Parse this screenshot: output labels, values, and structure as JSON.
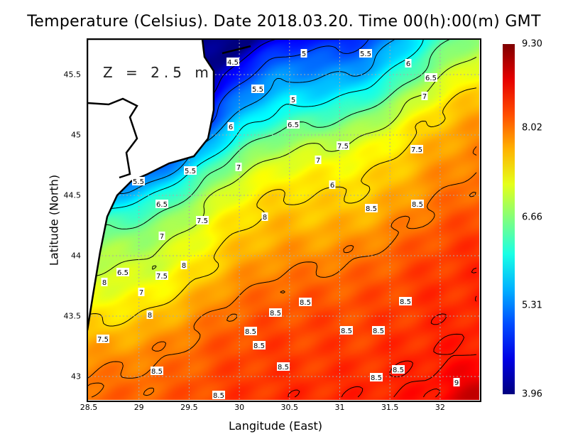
{
  "title": "Temperature (Celsius). Date 2018.03.20. Time 00(h):00(m)  GMT",
  "depth_label": "Z = 2.5 m",
  "x_axis": {
    "label": "Langitude (East)",
    "ticks": [
      "28.5",
      "29",
      "29.5",
      "30",
      "30.5",
      "31",
      "31.5",
      "32"
    ],
    "range": [
      28.5,
      32.4
    ]
  },
  "y_axis": {
    "label": "Latitude (North)",
    "ticks": [
      "45.5",
      "45",
      "44.5",
      "44",
      "43.5",
      "43"
    ],
    "range": [
      42.8,
      45.8
    ]
  },
  "colorbar": {
    "ticks": [
      "9.30",
      "8.02",
      "6.66",
      "5.31",
      "3.96"
    ],
    "min": 3.96,
    "max": 9.3,
    "colormap": "jet"
  },
  "contour_labels": [
    "4.5",
    "5",
    "5.5",
    "6",
    "6.5",
    "7",
    "5.5",
    "5",
    "6.5",
    "7",
    "7.5",
    "7.5",
    "6",
    "5.5",
    "7",
    "8",
    "5.5",
    "6.5",
    "7.5",
    "8",
    "8.5",
    "8.5",
    "6",
    "7",
    "8.5",
    "8",
    "6.5",
    "7",
    "7.5",
    "8",
    "8.5",
    "8.5",
    "8.5",
    "8.5",
    "8.5",
    "8.5",
    "8.5",
    "8.5",
    "8.5",
    "8.5",
    "8.5",
    "9",
    "7.5"
  ],
  "chart_data": {
    "type": "heatmap",
    "title": "Temperature (Celsius). Date 2018.03.20. Time 00(h):00(m)  GMT",
    "xlabel": "Langitude (East)",
    "ylabel": "Latitude (North)",
    "xlim": [
      28.5,
      32.4
    ],
    "ylim": [
      42.8,
      45.8
    ],
    "value_range": [
      3.96,
      9.3
    ],
    "contour_levels": [
      4.5,
      5,
      5.5,
      6,
      6.5,
      7,
      7.5,
      8,
      8.5,
      9
    ]
  }
}
